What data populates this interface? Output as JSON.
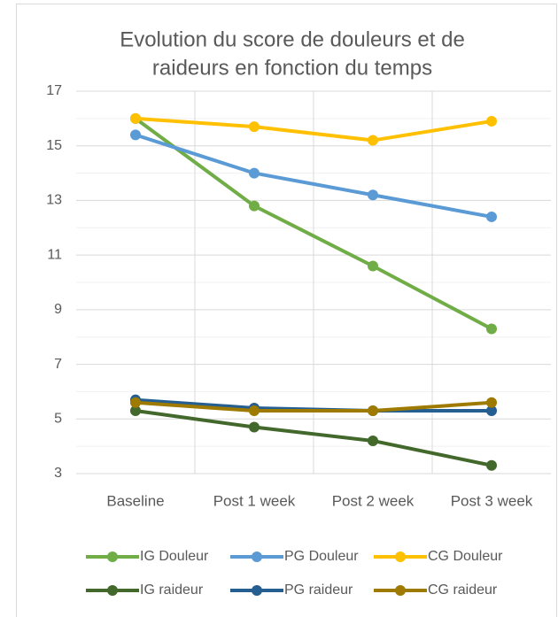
{
  "chart_data": {
    "type": "line",
    "title": [
      "Evolution du score de douleurs et de",
      "raideurs en fonction du temps"
    ],
    "categories": [
      "Baseline",
      "Post 1 week",
      "Post 2 week",
      "Post 3 week"
    ],
    "series": [
      {
        "name": "IG Douleur",
        "color": "#70ad47",
        "values": [
          16.0,
          12.8,
          10.6,
          8.3
        ]
      },
      {
        "name": "PG Douleur",
        "color": "#5b9bd5",
        "values": [
          15.4,
          14.0,
          13.2,
          12.4
        ]
      },
      {
        "name": "CG Douleur",
        "color": "#ffc000",
        "values": [
          16.0,
          15.7,
          15.2,
          15.9
        ]
      },
      {
        "name": "IG raideur",
        "color": "#43682b",
        "values": [
          5.3,
          4.7,
          4.2,
          3.3
        ]
      },
      {
        "name": "PG raideur",
        "color": "#255e91",
        "values": [
          5.7,
          5.4,
          5.3,
          5.3
        ]
      },
      {
        "name": "CG raideur",
        "color": "#9e7b00",
        "values": [
          5.6,
          5.3,
          5.3,
          5.6
        ]
      }
    ],
    "ylim": [
      3,
      17
    ],
    "yticks": [
      3,
      5,
      7,
      9,
      11,
      13,
      15,
      17
    ],
    "grid": true,
    "legend": "bottom"
  }
}
